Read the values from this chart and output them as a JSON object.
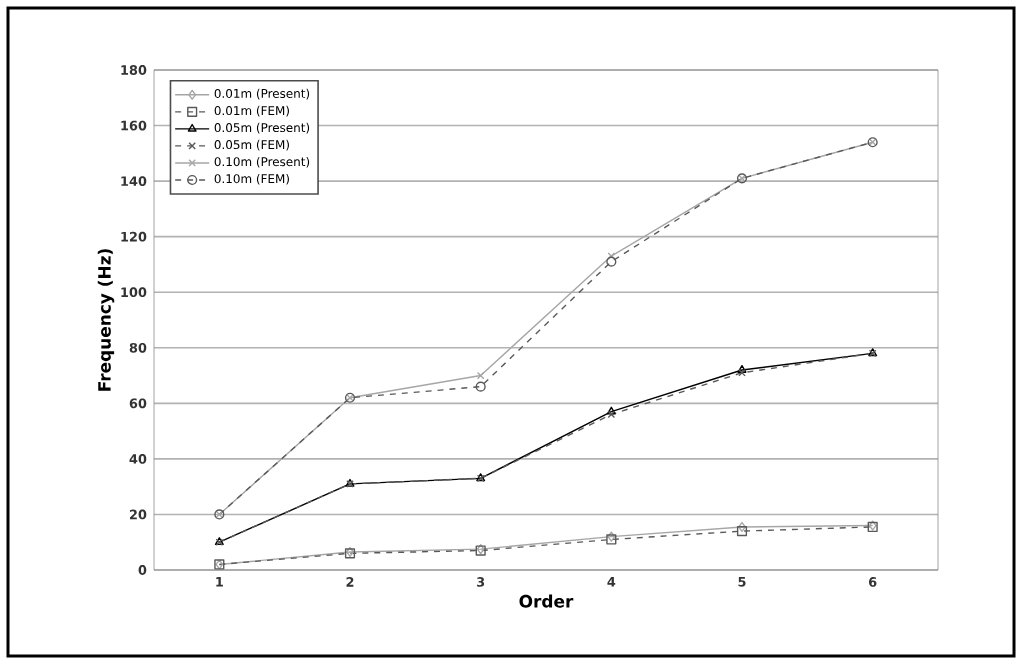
{
  "chart_data": {
    "type": "line",
    "xlabel": "Order",
    "ylabel": "Frequency (Hz)",
    "categories": [
      "1",
      "2",
      "3",
      "4",
      "5",
      "6"
    ],
    "ylim": [
      0,
      180
    ],
    "yticks": [
      0,
      20,
      40,
      60,
      80,
      100,
      120,
      140,
      160,
      180
    ],
    "grid": "y",
    "legend": "top left",
    "series": [
      {
        "name": "0.01m (Present)",
        "color": "#a6a6a6",
        "marker": "diamond",
        "line_style": "solid",
        "values": [
          2,
          6.5,
          7.5,
          12,
          15.5,
          16
        ]
      },
      {
        "name": "0.01m (FEM)",
        "color": "#595959",
        "marker": "square",
        "line_style": "dashed",
        "values": [
          2,
          6,
          7,
          11,
          14,
          15.5
        ]
      },
      {
        "name": "0.05m (Present)",
        "color": "#000000",
        "marker": "triangle",
        "line_style": "solid",
        "values": [
          10,
          31,
          33,
          57,
          72,
          78
        ]
      },
      {
        "name": "0.05m (FEM)",
        "color": "#595959",
        "marker": "cross",
        "line_style": "dashed",
        "values": [
          10,
          31,
          33,
          56,
          71,
          78
        ]
      },
      {
        "name": "0.10m (Present)",
        "color": "#a6a6a6",
        "marker": "cross",
        "line_style": "solid",
        "values": [
          20,
          62,
          70,
          113,
          141,
          154
        ]
      },
      {
        "name": "0.10m (FEM)",
        "color": "#595959",
        "marker": "circle",
        "line_style": "dashed",
        "values": [
          20,
          62,
          66,
          111,
          141,
          154
        ]
      }
    ]
  }
}
